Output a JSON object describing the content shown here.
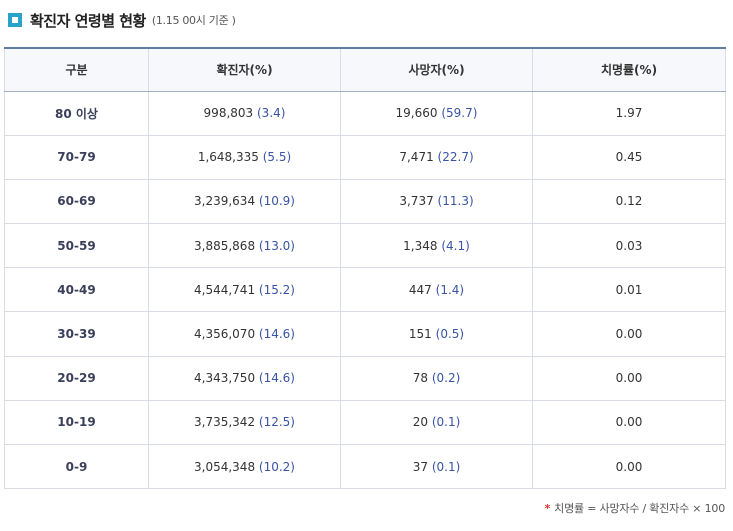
{
  "header": {
    "title": "확진자 연령별 현황",
    "subtitle": "(1.15 00시 기준 )"
  },
  "table": {
    "columns": [
      "구분",
      "확진자(%)",
      "사망자(%)",
      "치명률(%)"
    ],
    "rows": [
      {
        "age": "80 이상",
        "confirmed": "998,803",
        "confirmed_pct": "(3.4)",
        "deaths": "19,660",
        "deaths_pct": "(59.7)",
        "fatality": "1.97"
      },
      {
        "age": "70-79",
        "confirmed": "1,648,335",
        "confirmed_pct": "(5.5)",
        "deaths": "7,471",
        "deaths_pct": "(22.7)",
        "fatality": "0.45"
      },
      {
        "age": "60-69",
        "confirmed": "3,239,634",
        "confirmed_pct": "(10.9)",
        "deaths": "3,737",
        "deaths_pct": "(11.3)",
        "fatality": "0.12"
      },
      {
        "age": "50-59",
        "confirmed": "3,885,868",
        "confirmed_pct": "(13.0)",
        "deaths": "1,348",
        "deaths_pct": "(4.1)",
        "fatality": "0.03"
      },
      {
        "age": "40-49",
        "confirmed": "4,544,741",
        "confirmed_pct": "(15.2)",
        "deaths": "447",
        "deaths_pct": "(1.4)",
        "fatality": "0.01"
      },
      {
        "age": "30-39",
        "confirmed": "4,356,070",
        "confirmed_pct": "(14.6)",
        "deaths": "151",
        "deaths_pct": "(0.5)",
        "fatality": "0.00"
      },
      {
        "age": "20-29",
        "confirmed": "4,343,750",
        "confirmed_pct": "(14.6)",
        "deaths": "78",
        "deaths_pct": "(0.2)",
        "fatality": "0.00"
      },
      {
        "age": "10-19",
        "confirmed": "3,735,342",
        "confirmed_pct": "(12.5)",
        "deaths": "20",
        "deaths_pct": "(0.1)",
        "fatality": "0.00"
      },
      {
        "age": "0-9",
        "confirmed": "3,054,348",
        "confirmed_pct": "(10.2)",
        "deaths": "37",
        "deaths_pct": "(0.1)",
        "fatality": "0.00"
      }
    ]
  },
  "footnote": {
    "marker": "*",
    "text": "치명률 = 사망자수 / 확진자수 × 100"
  },
  "colors": {
    "accent_icon": "#2aa3c9",
    "header_border": "#5f7da3",
    "percent_text": "#3854a5",
    "footnote_marker": "#e1352f"
  },
  "icons": [
    "square-bullet-icon"
  ]
}
